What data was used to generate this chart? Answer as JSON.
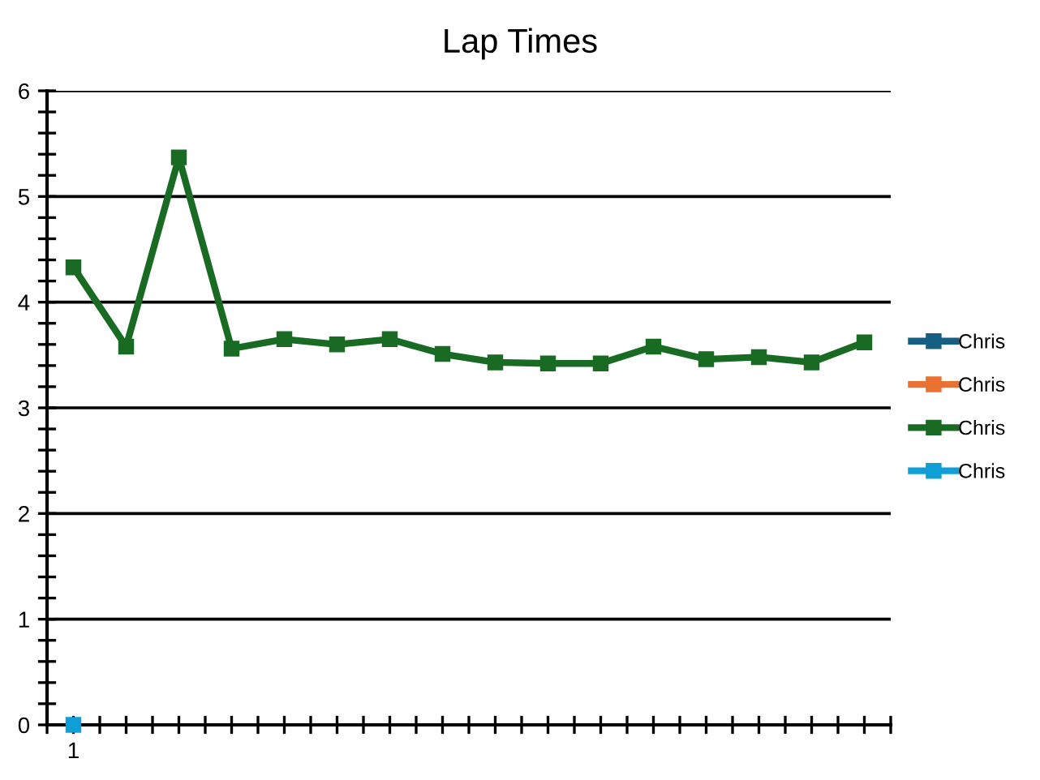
{
  "chart_data": {
    "type": "line",
    "title": "Lap Times",
    "categories": [
      "1",
      null,
      null,
      null,
      null,
      null,
      null,
      null,
      null,
      null,
      null,
      null,
      null,
      null,
      null,
      null
    ],
    "series": [
      {
        "name": "Chris",
        "color": "#156082",
        "values": [
          null,
          null,
          null,
          null,
          null,
          null,
          null,
          null,
          null,
          null,
          null,
          null,
          null,
          null,
          null,
          null
        ]
      },
      {
        "name": "Chris",
        "color": "#e97132",
        "values": [
          null,
          null,
          null,
          null,
          null,
          null,
          null,
          null,
          null,
          null,
          null,
          null,
          null,
          null,
          null,
          null
        ]
      },
      {
        "name": "Chris",
        "color": "#196b24",
        "values": [
          4.33,
          3.58,
          5.37,
          3.56,
          3.65,
          3.6,
          3.65,
          3.51,
          3.43,
          3.42,
          3.42,
          3.58,
          3.46,
          3.48,
          3.43,
          3.62
        ]
      },
      {
        "name": "Chris",
        "color": "#0f9ed5",
        "values": [
          0,
          null,
          null,
          null,
          null,
          null,
          null,
          null,
          null,
          null,
          null,
          null,
          null,
          null,
          null,
          null
        ]
      }
    ],
    "ylim": [
      0,
      6
    ],
    "yticks": [
      0,
      {
        "value": 0.2,
        "label": null
      },
      {
        "value": 0.4,
        "label": null
      },
      {
        "value": 0.6,
        "label": null
      },
      {
        "value": 0.8,
        "label": null
      },
      1,
      {
        "value": 1.2,
        "label": null
      },
      {
        "value": 1.4,
        "label": null
      },
      {
        "value": 1.6,
        "label": null
      },
      {
        "value": 1.8,
        "label": null
      },
      2,
      {
        "value": 2.2,
        "label": null
      },
      {
        "value": 2.4,
        "label": null
      },
      {
        "value": 2.6,
        "label": null
      },
      {
        "value": 2.8,
        "label": null
      },
      3,
      {
        "value": 3.2,
        "label": null
      },
      {
        "value": 3.4,
        "label": null
      },
      {
        "value": 3.6,
        "label": null
      },
      {
        "value": 3.8,
        "label": null
      },
      4,
      {
        "value": 4.2,
        "label": null
      },
      {
        "value": 4.4,
        "label": null
      },
      {
        "value": 4.6,
        "label": null
      },
      {
        "value": 4.8,
        "label": null
      },
      5,
      {
        "value": 5.2,
        "label": null
      },
      {
        "value": 5.4,
        "label": null
      },
      {
        "value": 5.6,
        "label": null
      },
      {
        "value": 5.8,
        "label": null
      },
      6
    ],
    "grid": "y",
    "legend": "right",
    "marker": "square",
    "line_style": "solid"
  }
}
